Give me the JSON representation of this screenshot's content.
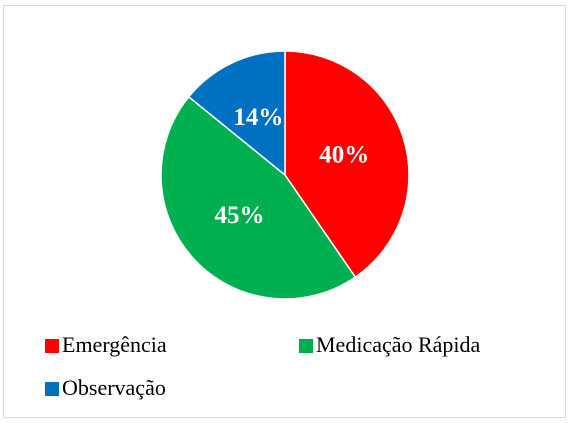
{
  "chart_data": {
    "type": "pie",
    "categories": [
      "Emergência",
      "Medicação Rápida",
      "Observação"
    ],
    "values": [
      40,
      45,
      14
    ],
    "value_labels": [
      "40%",
      "45%",
      "14%"
    ],
    "colors": [
      "#ff0000",
      "#00b050",
      "#0070c0"
    ],
    "legend": "bottom"
  }
}
